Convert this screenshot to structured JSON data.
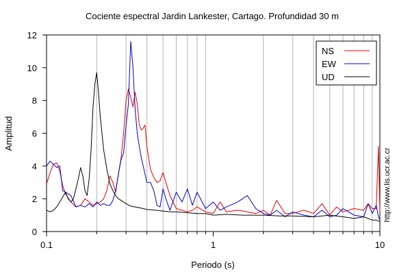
{
  "chart_data": {
    "type": "line",
    "title": "Cociente espectral Jardin Lankester, Cartago. Profundidad 30 m",
    "xlabel": "Periodo (s)",
    "ylabel": "Amplitud",
    "x_scale": "log",
    "xlim": [
      0.1,
      10
    ],
    "ylim": [
      0,
      12
    ],
    "grid": "vertical",
    "x_ticks": [
      "0.1",
      "1",
      "10"
    ],
    "y_ticks": [
      "0",
      "2",
      "4",
      "6",
      "8",
      "10",
      "12"
    ],
    "legend_position": "top-right",
    "series": [
      {
        "name": "NS",
        "color": "#e00000",
        "x": [
          0.1,
          0.105,
          0.11,
          0.115,
          0.12,
          0.125,
          0.13,
          0.14,
          0.15,
          0.16,
          0.17,
          0.18,
          0.19,
          0.2,
          0.21,
          0.22,
          0.23,
          0.24,
          0.25,
          0.26,
          0.27,
          0.28,
          0.29,
          0.3,
          0.31,
          0.32,
          0.33,
          0.34,
          0.35,
          0.36,
          0.37,
          0.38,
          0.39,
          0.4,
          0.42,
          0.44,
          0.46,
          0.48,
          0.5,
          0.52,
          0.55,
          0.6,
          0.65,
          0.7,
          0.75,
          0.8,
          0.9,
          1.0,
          1.1,
          1.2,
          1.4,
          1.6,
          1.8,
          2.0,
          2.2,
          2.4,
          2.7,
          3.0,
          3.5,
          4.0,
          4.5,
          5.0,
          5.5,
          6.0,
          7.0,
          8.0,
          8.5,
          9.0,
          9.5,
          9.8,
          10.0
        ],
        "y": [
          2.9,
          3.6,
          4.1,
          4.2,
          3.7,
          2.8,
          2.3,
          1.8,
          1.5,
          1.6,
          2.0,
          1.8,
          1.6,
          1.7,
          1.8,
          2.0,
          2.5,
          3.4,
          3.0,
          2.4,
          3.5,
          4.5,
          6.0,
          8.0,
          8.7,
          8.2,
          7.6,
          8.5,
          7.8,
          6.5,
          6.2,
          6.3,
          6.5,
          5.2,
          3.8,
          3.3,
          3.0,
          3.1,
          3.6,
          3.0,
          2.2,
          1.4,
          1.3,
          1.2,
          1.3,
          1.5,
          1.2,
          1.1,
          1.8,
          1.2,
          1.3,
          1.2,
          1.1,
          1.3,
          1.0,
          1.9,
          1.1,
          1.1,
          1.3,
          1.1,
          1.7,
          1.0,
          1.5,
          1.2,
          1.4,
          1.3,
          1.7,
          1.4,
          1.4,
          5.2,
          1.2
        ]
      },
      {
        "name": "EW",
        "color": "#0000cc",
        "x": [
          0.1,
          0.105,
          0.11,
          0.115,
          0.12,
          0.125,
          0.13,
          0.14,
          0.15,
          0.16,
          0.17,
          0.18,
          0.19,
          0.2,
          0.21,
          0.22,
          0.23,
          0.24,
          0.25,
          0.26,
          0.27,
          0.28,
          0.29,
          0.3,
          0.31,
          0.32,
          0.33,
          0.34,
          0.35,
          0.36,
          0.37,
          0.38,
          0.39,
          0.4,
          0.42,
          0.44,
          0.46,
          0.48,
          0.5,
          0.52,
          0.55,
          0.6,
          0.65,
          0.7,
          0.75,
          0.8,
          0.9,
          1.0,
          1.1,
          1.2,
          1.4,
          1.6,
          1.8,
          2.0,
          2.2,
          2.4,
          2.7,
          3.0,
          3.5,
          4.0,
          4.5,
          5.0,
          5.5,
          6.0,
          7.0,
          8.0,
          8.5,
          9.0,
          9.5,
          9.8,
          10.0
        ],
        "y": [
          4.0,
          4.3,
          4.1,
          3.9,
          4.0,
          2.5,
          2.4,
          2.2,
          1.5,
          1.6,
          1.5,
          1.7,
          1.5,
          1.8,
          1.6,
          1.7,
          1.6,
          1.6,
          1.9,
          2.5,
          3.5,
          4.4,
          4.8,
          6.5,
          7.8,
          11.6,
          10.0,
          7.5,
          6.0,
          5.2,
          4.5,
          4.0,
          3.5,
          3.0,
          3.0,
          2.5,
          1.6,
          1.5,
          2.6,
          2.0,
          1.3,
          2.4,
          1.8,
          2.6,
          1.6,
          2.4,
          1.4,
          1.8,
          1.3,
          1.5,
          1.8,
          2.2,
          1.4,
          1.1,
          1.0,
          1.3,
          0.9,
          1.2,
          1.0,
          0.9,
          1.3,
          0.9,
          1.0,
          1.4,
          1.0,
          0.9,
          1.7,
          1.1,
          1.6,
          0.9,
          0.7
        ]
      },
      {
        "name": "UD",
        "color": "#000000",
        "x": [
          0.1,
          0.105,
          0.11,
          0.115,
          0.12,
          0.125,
          0.13,
          0.135,
          0.14,
          0.145,
          0.15,
          0.155,
          0.16,
          0.165,
          0.17,
          0.175,
          0.18,
          0.185,
          0.19,
          0.195,
          0.2,
          0.205,
          0.21,
          0.22,
          0.23,
          0.24,
          0.25,
          0.26,
          0.27,
          0.28,
          0.3,
          0.32,
          0.34,
          0.36,
          0.38,
          0.4,
          0.45,
          0.5,
          0.55,
          0.6,
          0.7,
          0.8,
          0.9,
          1.0,
          1.2,
          1.5,
          2.0,
          2.5,
          3.0,
          4.0,
          5.0,
          6.0,
          7.0,
          8.0,
          9.0,
          9.5,
          10.0
        ],
        "y": [
          1.3,
          1.2,
          1.3,
          1.5,
          1.8,
          2.1,
          2.4,
          2.0,
          1.8,
          2.0,
          2.6,
          3.2,
          3.9,
          3.4,
          2.5,
          2.2,
          3.2,
          5.0,
          7.6,
          9.0,
          9.7,
          8.5,
          7.0,
          5.0,
          3.8,
          2.9,
          2.5,
          2.2,
          2.0,
          1.9,
          1.7,
          1.55,
          1.5,
          1.45,
          1.4,
          1.35,
          1.3,
          1.25,
          1.2,
          1.2,
          1.15,
          1.1,
          1.1,
          1.0,
          1.05,
          1.0,
          1.0,
          0.95,
          0.95,
          0.9,
          1.0,
          0.9,
          0.8,
          0.9,
          0.7,
          0.7,
          0.6
        ]
      }
    ],
    "side_text": "http://www.lis.ucr.ac.cr"
  }
}
